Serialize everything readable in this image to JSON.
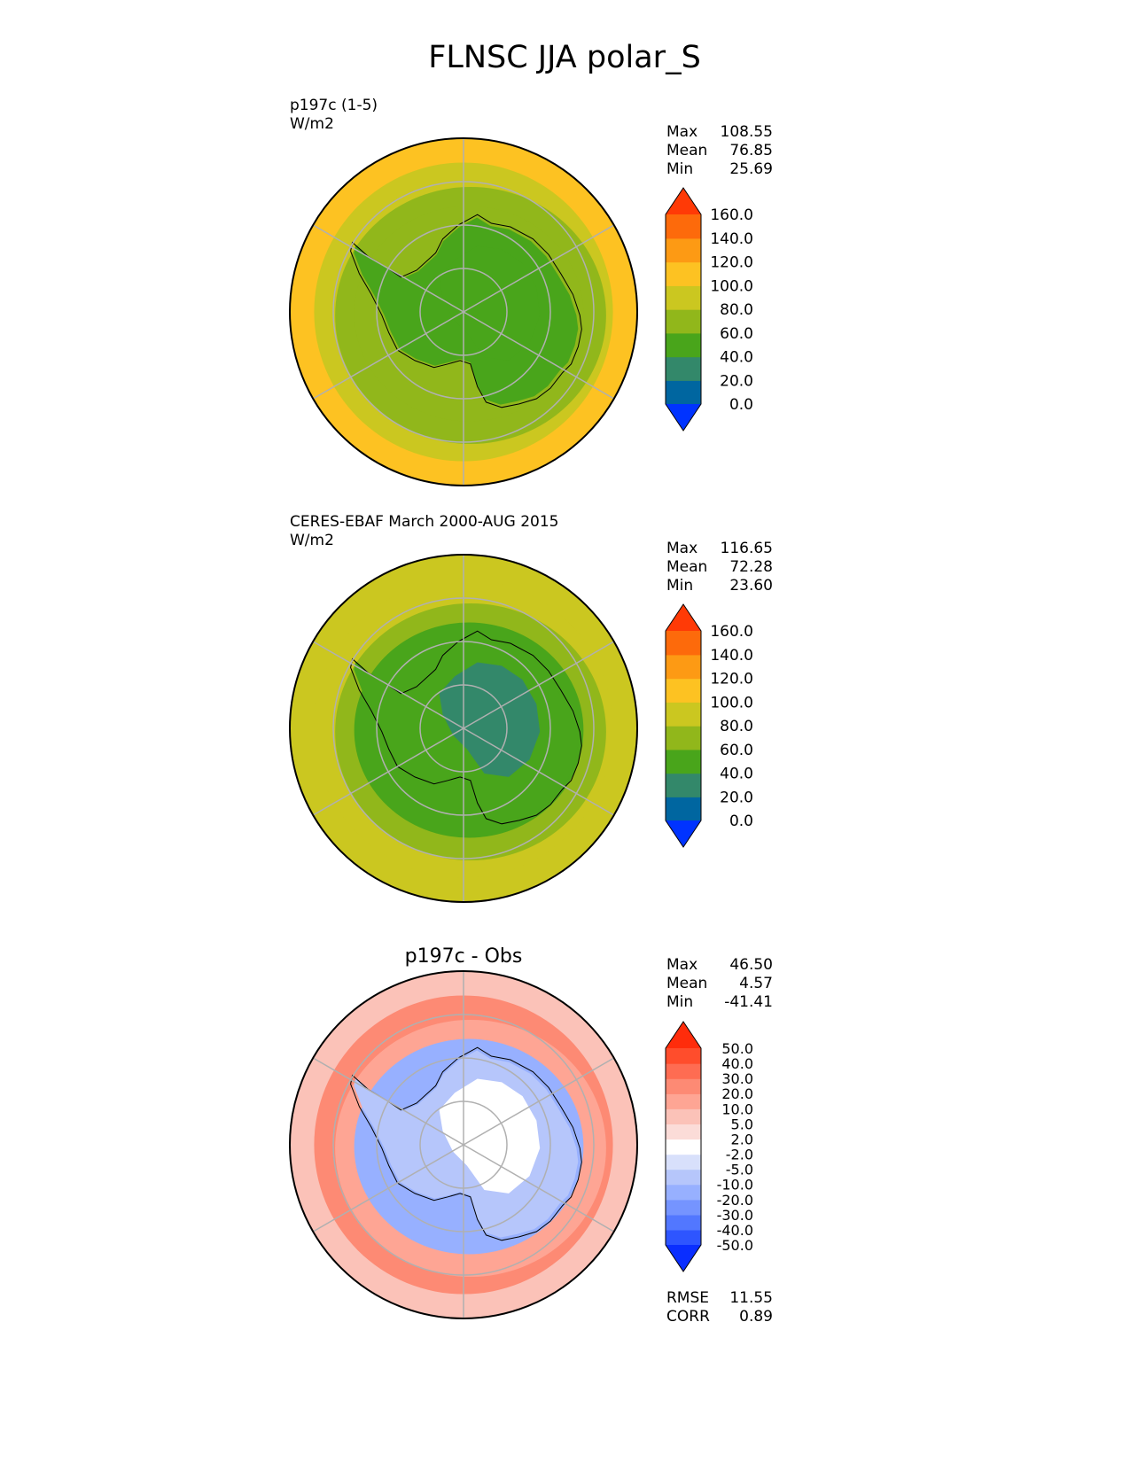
{
  "title": "FLNSC JJA polar_S",
  "chart_data": [
    {
      "type": "heatmap",
      "panel": "test",
      "title_lines": [
        "p197c (1-5)",
        "W/m2"
      ],
      "projection": "south polar stereographic",
      "stats": {
        "labels": [
          "Max",
          "Mean",
          "Min"
        ],
        "values": [
          "108.55",
          "76.85",
          "25.69"
        ]
      },
      "colorbar": {
        "levels": [
          "0.0",
          "20.0",
          "40.0",
          "60.0",
          "80.0",
          "100.0",
          "120.0",
          "140.0",
          "160.0"
        ],
        "colors": [
          "#0033ff",
          "#0066a0",
          "#33886a",
          "#49a51b",
          "#91b71b",
          "#cbc720",
          "#fdc222",
          "#fd9a14",
          "#fd6a0b",
          "#ff3a06"
        ],
        "extend": "both"
      },
      "regions": {
        "ocean_far": 100,
        "ocean_mid": 90,
        "ring": 75,
        "ice_shelf": 65,
        "interior": 55,
        "plateau": 45
      }
    },
    {
      "type": "heatmap",
      "panel": "reference",
      "title_lines": [
        "CERES-EBAF March 2000-AUG 2015",
        "W/m2"
      ],
      "projection": "south polar stereographic",
      "stats": {
        "labels": [
          "Max",
          "Mean",
          "Min"
        ],
        "values": [
          "116.65",
          "72.28",
          "23.60"
        ]
      },
      "colorbar": {
        "levels": [
          "0.0",
          "20.0",
          "40.0",
          "60.0",
          "80.0",
          "100.0",
          "120.0",
          "140.0",
          "160.0"
        ],
        "colors": [
          "#0033ff",
          "#0066a0",
          "#33886a",
          "#49a51b",
          "#91b71b",
          "#cbc720",
          "#fdc222",
          "#fd9a14",
          "#fd6a0b",
          "#ff3a06"
        ],
        "extend": "both"
      },
      "regions": {
        "ocean_far": 90,
        "ocean_mid": 85,
        "ring": 70,
        "ice_shelf": 55,
        "interior": 50,
        "plateau": 35
      }
    },
    {
      "type": "heatmap",
      "panel": "difference",
      "title": "p197c - Obs",
      "projection": "south polar stereographic",
      "stats": {
        "labels": [
          "Max",
          "Mean",
          "Min"
        ],
        "values": [
          "46.50",
          "4.57",
          "-41.41"
        ]
      },
      "colorbar": {
        "levels": [
          "-50.0",
          "-40.0",
          "-30.0",
          "-20.0",
          "-10.0",
          "-5.0",
          "-2.0",
          "2.0",
          "5.0",
          "10.0",
          "20.0",
          "30.0",
          "40.0",
          "50.0"
        ],
        "colors": [
          "#0a2eff",
          "#2e55ff",
          "#5277ff",
          "#7594ff",
          "#97b0ff",
          "#b6c6fb",
          "#d8e0fb",
          "#ffffff",
          "#fbdcd8",
          "#fbc2b8",
          "#fea594",
          "#fd8a74",
          "#fe6c52",
          "#ff4d2c",
          "#ff2c0b"
        ],
        "extend": "both"
      },
      "regions": {
        "ocean_far": 8,
        "ocean_mid": 22,
        "ring": 15,
        "ice_shelf": -12,
        "interior": -8,
        "plateau": 0
      },
      "metrics": {
        "labels": [
          "RMSE",
          "CORR"
        ],
        "values": [
          "11.55",
          "0.89"
        ]
      }
    }
  ]
}
